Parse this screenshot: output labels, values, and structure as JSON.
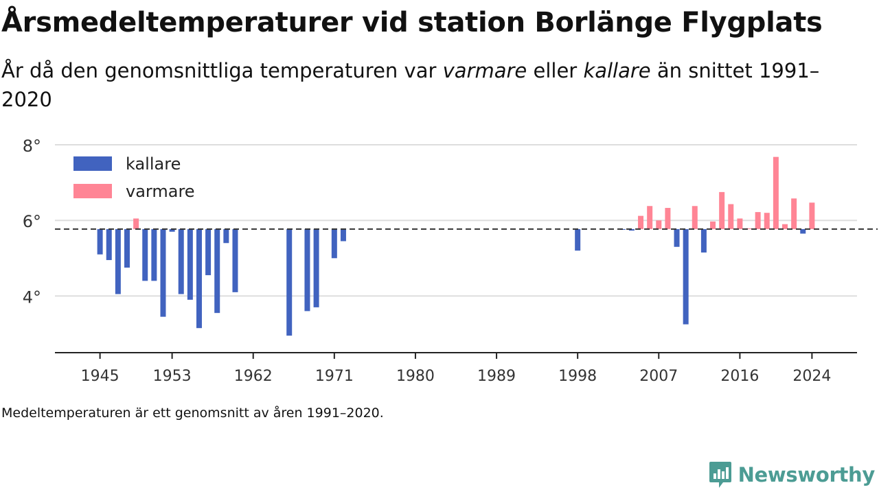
{
  "header": {
    "title": "Årsmedeltemperaturer vid station Borlänge Flygplats",
    "subtitle_pre": "År då den genomsnittliga temperaturen var ",
    "subtitle_em1": "varmare",
    "subtitle_mid": " eller ",
    "subtitle_em2": "kallare",
    "subtitle_post": " än snittet 1991–2020"
  },
  "footer": {
    "note": "Medeltemperaturen är ett genomsnitt av åren 1991–2020.",
    "brand": "Newsworthy"
  },
  "colors": {
    "colder": "#4163bf",
    "warmer": "#ff8595",
    "reference": "#333333",
    "grid": "#dddddd",
    "brand": "#4c9c94"
  },
  "chart_data": {
    "type": "bar",
    "baseline": 5.77,
    "x_ticks": [
      1945,
      1953,
      1962,
      1971,
      1980,
      1989,
      1998,
      2007,
      2016,
      2024
    ],
    "y_ticks": [
      {
        "value": 4,
        "label": "4°"
      },
      {
        "value": 6,
        "label": "6°"
      },
      {
        "value": 8,
        "label": "8°"
      }
    ],
    "xlim": [
      1940,
      2029
    ],
    "ylim": [
      2.5,
      8.6
    ],
    "legend": {
      "position": "top-left",
      "entries": [
        {
          "key": "colder",
          "label": "kallare"
        },
        {
          "key": "warmer",
          "label": "varmare"
        }
      ]
    },
    "x": [
      1945,
      1946,
      1947,
      1948,
      1949,
      1950,
      1951,
      1952,
      1953,
      1954,
      1955,
      1956,
      1957,
      1958,
      1959,
      1960,
      1966,
      1968,
      1969,
      1971,
      1972,
      1998,
      2003,
      2004,
      2005,
      2006,
      2007,
      2008,
      2009,
      2010,
      2011,
      2012,
      2013,
      2014,
      2015,
      2016,
      2017,
      2018,
      2019,
      2020,
      2021,
      2022,
      2023,
      2024
    ],
    "values": [
      5.1,
      4.95,
      4.05,
      4.75,
      6.05,
      4.4,
      4.4,
      3.45,
      5.7,
      4.05,
      3.9,
      3.15,
      4.55,
      3.55,
      5.4,
      4.1,
      2.95,
      3.6,
      3.7,
      5.0,
      5.45,
      5.2,
      5.75,
      5.73,
      6.12,
      6.38,
      6.0,
      6.33,
      5.3,
      3.25,
      6.38,
      5.15,
      5.97,
      6.75,
      6.43,
      6.05,
      5.79,
      6.22,
      6.2,
      7.68,
      5.9,
      6.58,
      5.65,
      6.47
    ]
  }
}
